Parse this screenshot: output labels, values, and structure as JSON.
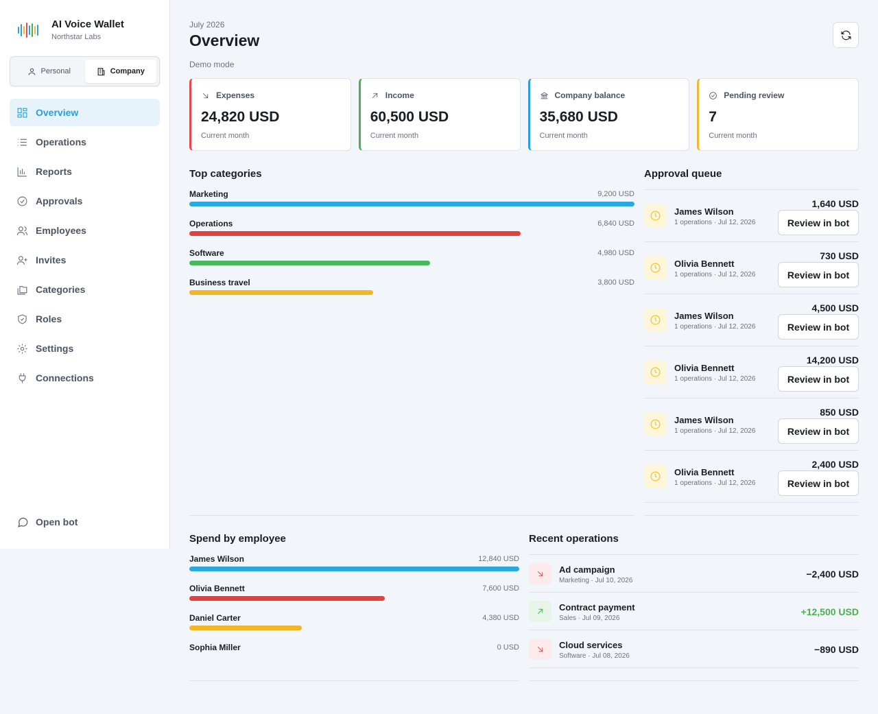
{
  "brand": {
    "title": "AI Voice Wallet",
    "subtitle": "Northstar Labs"
  },
  "mode": {
    "personal": "Personal",
    "company": "Company",
    "selected": "Company"
  },
  "nav": [
    {
      "label": "Overview",
      "icon": "dashboard-icon",
      "active": true
    },
    {
      "label": "Operations",
      "icon": "list-icon"
    },
    {
      "label": "Reports",
      "icon": "bar-chart-icon"
    },
    {
      "label": "Approvals",
      "icon": "check-circle-icon"
    },
    {
      "label": "Employees",
      "icon": "users-icon"
    },
    {
      "label": "Invites",
      "icon": "user-plus-icon"
    },
    {
      "label": "Categories",
      "icon": "folders-icon"
    },
    {
      "label": "Roles",
      "icon": "shield-check-icon"
    },
    {
      "label": "Settings",
      "icon": "gear-icon"
    },
    {
      "label": "Connections",
      "icon": "plug-icon"
    }
  ],
  "open_bot": "Open bot",
  "header": {
    "period": "July 2026",
    "title": "Overview",
    "mode_note": "Demo mode"
  },
  "stats": [
    {
      "label": "Expenses",
      "value": "24,820 USD",
      "sub": "Current month",
      "color": "#e5484d",
      "icon": "arrow-down-right-icon"
    },
    {
      "label": "Income",
      "value": "60,500 USD",
      "sub": "Current month",
      "color": "#4caf50",
      "icon": "arrow-up-right-icon"
    },
    {
      "label": "Company balance",
      "value": "35,680 USD",
      "sub": "Current month",
      "color": "#2b9fd8",
      "icon": "bank-icon"
    },
    {
      "label": "Pending review",
      "value": "7",
      "sub": "Current month",
      "color": "#f2b630",
      "icon": "check-circle-icon"
    }
  ],
  "top_categories": {
    "title": "Top categories",
    "items": [
      {
        "name": "Marketing",
        "amount": "9,200 USD",
        "fraction": 1.0,
        "color": "#2ba8e0"
      },
      {
        "name": "Operations",
        "amount": "6,840 USD",
        "fraction": 0.744,
        "color": "#e5403f"
      },
      {
        "name": "Software",
        "amount": "4,980 USD",
        "fraction": 0.541,
        "color": "#4cb85c"
      },
      {
        "name": "Business travel",
        "amount": "3,800 USD",
        "fraction": 0.413,
        "color": "#f2b626"
      }
    ]
  },
  "approval_queue": {
    "title": "Approval queue",
    "button": "Review in bot",
    "items": [
      {
        "name": "James Wilson",
        "meta": "1 operations · Jul 12, 2026",
        "amount": "1,640 USD"
      },
      {
        "name": "Olivia Bennett",
        "meta": "1 operations · Jul 12, 2026",
        "amount": "730 USD"
      },
      {
        "name": "James Wilson",
        "meta": "1 operations · Jul 12, 2026",
        "amount": "4,500 USD"
      },
      {
        "name": "Olivia Bennett",
        "meta": "1 operations · Jul 12, 2026",
        "amount": "14,200 USD"
      },
      {
        "name": "James Wilson",
        "meta": "1 operations · Jul 12, 2026",
        "amount": "850 USD"
      },
      {
        "name": "Olivia Bennett",
        "meta": "1 operations · Jul 12, 2026",
        "amount": "2,400 USD"
      }
    ]
  },
  "spend_by_employee": {
    "title": "Spend by employee",
    "items": [
      {
        "name": "James Wilson",
        "amount": "12,840 USD",
        "fraction": 1.0,
        "color": "#2ba8e0"
      },
      {
        "name": "Olivia Bennett",
        "amount": "7,600 USD",
        "fraction": 0.592,
        "color": "#e5403f"
      },
      {
        "name": "Daniel Carter",
        "amount": "4,380 USD",
        "fraction": 0.341,
        "color": "#f2b626"
      },
      {
        "name": "Sophia Miller",
        "amount": "0 USD",
        "fraction": 0.0,
        "color": "#2ba8e0"
      }
    ]
  },
  "recent_operations": {
    "title": "Recent operations",
    "items": [
      {
        "name": "Ad campaign",
        "meta": "Marketing · Jul 10, 2026",
        "amount": "−2,400 USD",
        "direction": "out"
      },
      {
        "name": "Contract payment",
        "meta": "Sales · Jul 09, 2026",
        "amount": "+12,500 USD",
        "direction": "in"
      },
      {
        "name": "Cloud services",
        "meta": "Software · Jul 08, 2026",
        "amount": "−890 USD",
        "direction": "out"
      }
    ]
  }
}
